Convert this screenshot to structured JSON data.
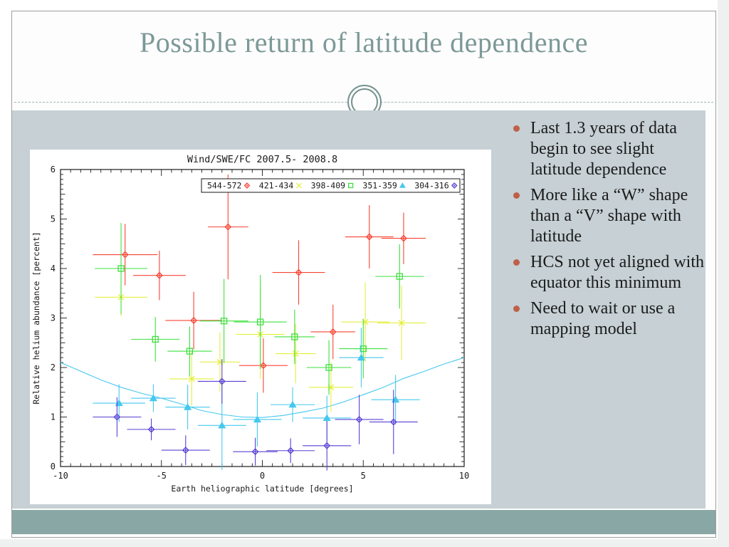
{
  "theme": {
    "title_color": "#7c9997",
    "panel_color": "#c6d0d5",
    "band_color": "#89a7a4",
    "bullet_color": "#c05f49",
    "ornament_color": "#75918f"
  },
  "slide": {
    "title": "Possible return of latitude dependence",
    "bullets": [
      "Last 1.3 years of data begin to see slight latitude dependence",
      "More like a “W” shape than a “V” shape with latitude",
      "HCS not yet aligned with equator this minimum",
      "Need to wait or use a mapping model"
    ]
  },
  "chart_data": {
    "type": "scatter",
    "title": "Wind/SWE/FC  2007.5- 2008.8",
    "xlabel": "Earth heliographic latitude [degrees]",
    "ylabel": "Relative helium abundance [percent]",
    "xlim": [
      -10,
      10
    ],
    "ylim": [
      0,
      6
    ],
    "xticks": [
      -10,
      -5,
      0,
      5,
      10
    ],
    "yticks": [
      0,
      1,
      2,
      3,
      4,
      5,
      6
    ],
    "grid": false,
    "legend_position": "top-inside",
    "series": [
      {
        "name": "544-572",
        "color": "#f84434",
        "marker": "diamond-dot",
        "points": [
          {
            "x": -6.8,
            "y": 4.28,
            "ex": 1.6,
            "ey": 0.62
          },
          {
            "x": -5.1,
            "y": 3.86,
            "ex": 1.3,
            "ey": 0.5
          },
          {
            "x": -3.4,
            "y": 2.95,
            "ex": 1.4,
            "ey": 0.58
          },
          {
            "x": -1.7,
            "y": 4.84,
            "ex": 1.0,
            "ey": 1.06
          },
          {
            "x": 0.05,
            "y": 2.04,
            "ex": 1.2,
            "ey": 0.55
          },
          {
            "x": 1.8,
            "y": 3.92,
            "ex": 1.3,
            "ey": 0.65
          },
          {
            "x": 3.5,
            "y": 2.72,
            "ex": 1.1,
            "ey": 0.55
          },
          {
            "x": 5.3,
            "y": 4.64,
            "ex": 1.2,
            "ey": 0.64
          },
          {
            "x": 7.0,
            "y": 4.61,
            "ex": 1.1,
            "ey": 0.52
          }
        ]
      },
      {
        "name": "421-434",
        "color": "#e4ef3e",
        "marker": "x",
        "points": [
          {
            "x": -7.0,
            "y": 3.42,
            "ex": 1.3,
            "ey": 0.38
          },
          {
            "x": -3.5,
            "y": 1.77,
            "ex": 1.1,
            "ey": 0.55
          },
          {
            "x": -2.1,
            "y": 2.11,
            "ex": 1.0,
            "ey": 0.6
          },
          {
            "x": -0.1,
            "y": 2.67,
            "ex": 1.2,
            "ey": 0.9
          },
          {
            "x": 1.65,
            "y": 2.28,
            "ex": 1.0,
            "ey": 0.6
          },
          {
            "x": 3.4,
            "y": 1.6,
            "ex": 1.1,
            "ey": 0.5
          },
          {
            "x": 5.1,
            "y": 2.92,
            "ex": 1.2,
            "ey": 0.8
          },
          {
            "x": 6.9,
            "y": 2.9,
            "ex": 1.2,
            "ey": 0.75
          }
        ]
      },
      {
        "name": "398-409",
        "color": "#3ee03e",
        "marker": "square",
        "points": [
          {
            "x": -7.0,
            "y": 4.0,
            "ex": 1.3,
            "ey": 0.92
          },
          {
            "x": -5.3,
            "y": 2.57,
            "ex": 1.2,
            "ey": 0.45
          },
          {
            "x": -3.6,
            "y": 2.33,
            "ex": 1.1,
            "ey": 0.5
          },
          {
            "x": -1.9,
            "y": 2.94,
            "ex": 1.2,
            "ey": 0.85
          },
          {
            "x": -0.1,
            "y": 2.92,
            "ex": 1.3,
            "ey": 0.95
          },
          {
            "x": 1.6,
            "y": 2.62,
            "ex": 1.0,
            "ey": 0.55
          },
          {
            "x": 3.3,
            "y": 2.0,
            "ex": 1.1,
            "ey": 0.55
          },
          {
            "x": 5.0,
            "y": 2.38,
            "ex": 1.2,
            "ey": 0.6
          },
          {
            "x": 6.8,
            "y": 3.84,
            "ex": 1.2,
            "ey": 0.65
          }
        ]
      },
      {
        "name": "351-359",
        "color": "#45c8ee",
        "marker": "triangle",
        "points": [
          {
            "x": -7.1,
            "y": 1.28,
            "ex": 1.3,
            "ey": 0.38
          },
          {
            "x": -5.4,
            "y": 1.38,
            "ex": 1.1,
            "ey": 0.28
          },
          {
            "x": -3.7,
            "y": 1.2,
            "ex": 1.1,
            "ey": 0.45
          },
          {
            "x": -2.0,
            "y": 0.83,
            "ex": 1.2,
            "ey": 0.9
          },
          {
            "x": -0.25,
            "y": 0.95,
            "ex": 1.2,
            "ey": 0.55
          },
          {
            "x": 1.5,
            "y": 1.25,
            "ex": 1.1,
            "ey": 0.35
          },
          {
            "x": 3.2,
            "y": 0.98,
            "ex": 1.2,
            "ey": 0.45
          },
          {
            "x": 4.9,
            "y": 2.2,
            "ex": 1.1,
            "ey": 0.6
          },
          {
            "x": 6.6,
            "y": 1.35,
            "ex": 1.2,
            "ey": 0.5
          }
        ]
      },
      {
        "name": "304-316",
        "color": "#5940d4",
        "marker": "diamond-dot",
        "points": [
          {
            "x": -7.2,
            "y": 1.0,
            "ex": 1.2,
            "ey": 0.4
          },
          {
            "x": -5.5,
            "y": 0.75,
            "ex": 1.2,
            "ey": 0.22
          },
          {
            "x": -3.8,
            "y": 0.33,
            "ex": 1.2,
            "ey": 0.3
          },
          {
            "x": -2.0,
            "y": 1.72,
            "ex": 1.2,
            "ey": 0.45
          },
          {
            "x": -0.35,
            "y": 0.3,
            "ex": 1.1,
            "ey": 0.28
          },
          {
            "x": 1.4,
            "y": 0.32,
            "ex": 1.2,
            "ey": 0.25
          },
          {
            "x": 3.2,
            "y": 0.42,
            "ex": 1.2,
            "ey": 0.5
          },
          {
            "x": 4.8,
            "y": 0.95,
            "ex": 1.2,
            "ey": 0.5
          },
          {
            "x": 6.5,
            "y": 0.9,
            "ex": 1.2,
            "ey": 0.65
          }
        ]
      }
    ],
    "fit_curve": {
      "color": "#45c8ee",
      "points": [
        [
          -10,
          2.1
        ],
        [
          -8,
          1.75
        ],
        [
          -7,
          1.6
        ],
        [
          -6,
          1.48
        ],
        [
          -5,
          1.38
        ],
        [
          -4,
          1.26
        ],
        [
          -3,
          1.13
        ],
        [
          -2,
          1.05
        ],
        [
          -1,
          1.0
        ],
        [
          0,
          0.99
        ],
        [
          1,
          1.03
        ],
        [
          2,
          1.1
        ],
        [
          3,
          1.18
        ],
        [
          4,
          1.3
        ],
        [
          5,
          1.45
        ],
        [
          6,
          1.6
        ],
        [
          7,
          1.78
        ],
        [
          8,
          1.92
        ],
        [
          9,
          2.07
        ],
        [
          10,
          2.2
        ]
      ]
    }
  }
}
